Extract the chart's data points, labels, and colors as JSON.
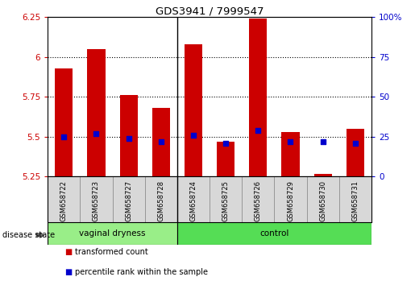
{
  "title": "GDS3941 / 7999547",
  "samples": [
    "GSM658722",
    "GSM658723",
    "GSM658727",
    "GSM658728",
    "GSM658724",
    "GSM658725",
    "GSM658726",
    "GSM658729",
    "GSM658730",
    "GSM658731"
  ],
  "red_values": [
    5.93,
    6.05,
    5.76,
    5.68,
    6.08,
    5.47,
    6.24,
    5.53,
    5.27,
    5.55
  ],
  "blue_values": [
    5.5,
    5.52,
    5.49,
    5.47,
    5.51,
    5.46,
    5.54,
    5.47,
    5.47,
    5.46
  ],
  "ylim_left": [
    5.25,
    6.25
  ],
  "ylim_right": [
    0,
    100
  ],
  "yticks_left": [
    5.25,
    5.5,
    5.75,
    6.0,
    6.25
  ],
  "ytick_labels_left": [
    "5.25",
    "5.5",
    "5.75",
    "6",
    "6.25"
  ],
  "yticks_right": [
    0,
    25,
    50,
    75,
    100
  ],
  "ytick_labels_right": [
    "0",
    "25",
    "50",
    "75",
    "100%"
  ],
  "bar_bottom": 5.25,
  "red_color": "#cc0000",
  "blue_color": "#0000cc",
  "group1_color": "#99ee88",
  "group2_color": "#55dd55",
  "bar_width": 0.55,
  "label_red": "transformed count",
  "label_blue": "percentile rank within the sample",
  "disease_state_label": "disease state",
  "group1_name": "vaginal dryness",
  "group2_name": "control",
  "n_group1": 4,
  "n_group2": 6,
  "divider_idx": 3.5,
  "tick_label_area_color": "#d8d8d8",
  "grid_ticks": [
    5.5,
    5.75,
    6.0
  ]
}
